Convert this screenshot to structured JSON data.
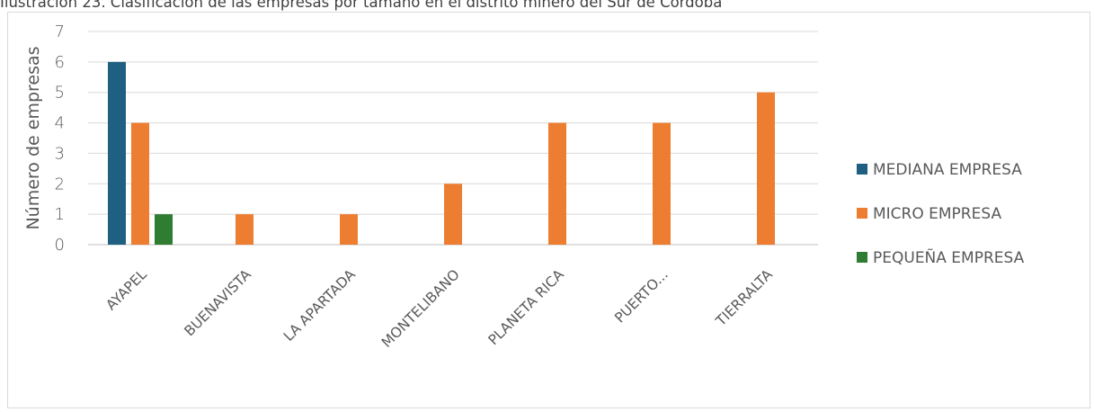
{
  "caption": "Ilustración 23. Clasificación de las empresas por tamaño en el distrito minero del Sur de Córdoba",
  "chart_data": {
    "type": "bar",
    "title": "",
    "xlabel": "",
    "ylabel": "Número de empresas",
    "ylim": [
      0,
      7
    ],
    "yticks": [
      0,
      1,
      2,
      3,
      4,
      5,
      6,
      7
    ],
    "grid": true,
    "legend_position": "right",
    "categories": [
      "AYAPEL",
      "BUENAVISTA",
      "LA APARTADA",
      "MONTELIBANO",
      "PLANETA RICA",
      "PUERTO...",
      "TIERRALTA"
    ],
    "series": [
      {
        "name": "MEDIANA EMPRESA",
        "color": "#1f5f82",
        "values": [
          6,
          null,
          null,
          null,
          null,
          null,
          null
        ]
      },
      {
        "name": "MICRO EMPRESA",
        "color": "#ed7d31",
        "values": [
          4,
          1,
          1,
          2,
          4,
          4,
          5
        ]
      },
      {
        "name": "PEQUEÑA EMPRESA",
        "color": "#2e7d32",
        "values": [
          1,
          null,
          null,
          null,
          null,
          null,
          null
        ]
      }
    ]
  }
}
